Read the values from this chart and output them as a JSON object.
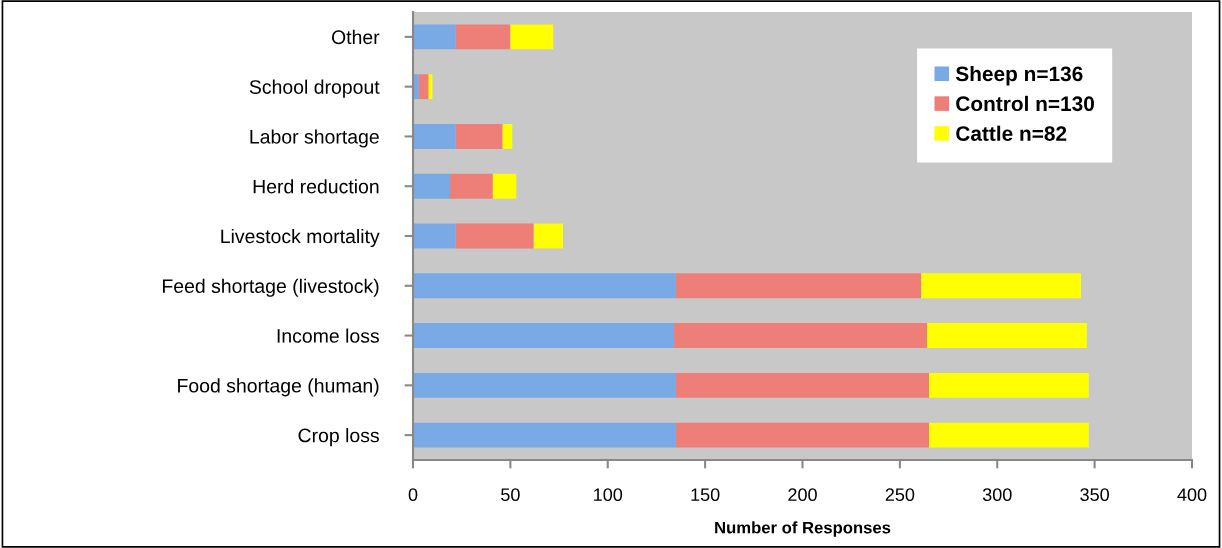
{
  "chart_data": {
    "type": "bar",
    "orientation": "horizontal",
    "stacked": true,
    "categories": [
      "Other",
      "School dropout",
      "Labor shortage",
      "Herd reduction",
      "Livestock mortality",
      "Feed shortage (livestock)",
      "Income loss",
      "Food shortage (human)",
      "Crop loss"
    ],
    "series": [
      {
        "name": "Sheep n=136",
        "color": "#7aaae6",
        "values": [
          22,
          3,
          22,
          19,
          22,
          135,
          134,
          135,
          135
        ]
      },
      {
        "name": "Control n=130",
        "color": "#ee7f78",
        "values": [
          28,
          5,
          24,
          22,
          40,
          126,
          130,
          130,
          130
        ]
      },
      {
        "name": "Cattle n=82",
        "color": "#ffff00",
        "values": [
          22,
          2,
          5,
          12,
          15,
          82,
          82,
          82,
          82
        ]
      }
    ],
    "xlabel": "Number of Responses",
    "xlim": [
      0,
      400
    ],
    "xticks": [
      0,
      50,
      100,
      150,
      200,
      250,
      300,
      350,
      400
    ],
    "grid": false,
    "legend": "top right"
  }
}
